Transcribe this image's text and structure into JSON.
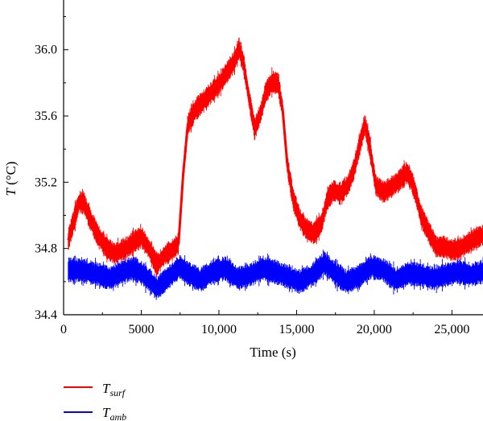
{
  "chart_data": {
    "type": "line",
    "xlabel": "Time (s)",
    "ylabel_var": "T",
    "ylabel_unit": " (°C)",
    "xlim": [
      0,
      27000
    ],
    "ylim": [
      34.4,
      36.3
    ],
    "xticks": [
      0,
      5000,
      10000,
      15000,
      20000,
      25000
    ],
    "xtick_labels": [
      "0",
      "5000",
      "10,000",
      "15,000",
      "20,000",
      "25,000"
    ],
    "yticks": [
      34.4,
      34.8,
      35.2,
      35.6,
      36.0
    ],
    "ytick_labels": [
      "34.4",
      "34.8",
      "35.2",
      "35.6",
      "36.0"
    ],
    "grid": false,
    "legend_position": "below-left",
    "series": [
      {
        "name_main": "T",
        "name_sub": "surf",
        "color": "#ff0000",
        "band_halfwidth": 0.055,
        "x": [
          300,
          600,
          1000,
          1300,
          1700,
          2200,
          2800,
          3300,
          4000,
          4500,
          5000,
          5500,
          6000,
          6500,
          7000,
          7400,
          7700,
          8000,
          8500,
          9000,
          9500,
          10000,
          10500,
          11000,
          11300,
          11600,
          11900,
          12300,
          12700,
          13000,
          13400,
          13800,
          14100,
          14400,
          14800,
          15200,
          15600,
          16100,
          16600,
          17000,
          17400,
          17800,
          18300,
          18700,
          19100,
          19400,
          19700,
          20100,
          20600,
          21100,
          21600,
          22100,
          22400,
          22700,
          23000,
          23500,
          24000,
          24500,
          25000,
          25500,
          26000,
          26500,
          27000
        ],
        "y": [
          34.85,
          34.95,
          35.08,
          35.08,
          34.98,
          34.88,
          34.8,
          34.77,
          34.8,
          34.84,
          34.87,
          34.8,
          34.7,
          34.76,
          34.79,
          34.83,
          35.25,
          35.55,
          35.64,
          35.69,
          35.74,
          35.79,
          35.86,
          35.93,
          36.01,
          35.91,
          35.73,
          35.52,
          35.62,
          35.74,
          35.8,
          35.8,
          35.64,
          35.31,
          35.09,
          34.98,
          34.92,
          34.89,
          34.95,
          35.1,
          35.15,
          35.13,
          35.18,
          35.28,
          35.44,
          35.55,
          35.42,
          35.18,
          35.14,
          35.17,
          35.21,
          35.26,
          35.21,
          35.12,
          35.0,
          34.9,
          34.81,
          34.81,
          34.79,
          34.8,
          34.83,
          34.86,
          34.88
        ]
      },
      {
        "name_main": "T",
        "name_sub": "amb",
        "color": "#0000ff",
        "band_halfwidth": 0.06,
        "x": [
          300,
          1000,
          2000,
          3000,
          3800,
          4500,
          5200,
          6000,
          6800,
          7500,
          8000,
          8800,
          9600,
          10400,
          11200,
          12000,
          12800,
          13600,
          14400,
          15200,
          16000,
          16800,
          17500,
          18200,
          19000,
          19800,
          20600,
          21400,
          22200,
          23000,
          23800,
          24600,
          25400,
          26200,
          27000
        ],
        "y": [
          34.67,
          34.67,
          34.65,
          34.62,
          34.66,
          34.68,
          34.64,
          34.56,
          34.63,
          34.69,
          34.65,
          34.61,
          34.66,
          34.68,
          34.62,
          34.64,
          34.68,
          34.66,
          34.63,
          34.6,
          34.64,
          34.71,
          34.65,
          34.6,
          34.63,
          34.69,
          34.67,
          34.61,
          34.65,
          34.64,
          34.62,
          34.64,
          34.66,
          34.64,
          34.66
        ]
      }
    ]
  }
}
